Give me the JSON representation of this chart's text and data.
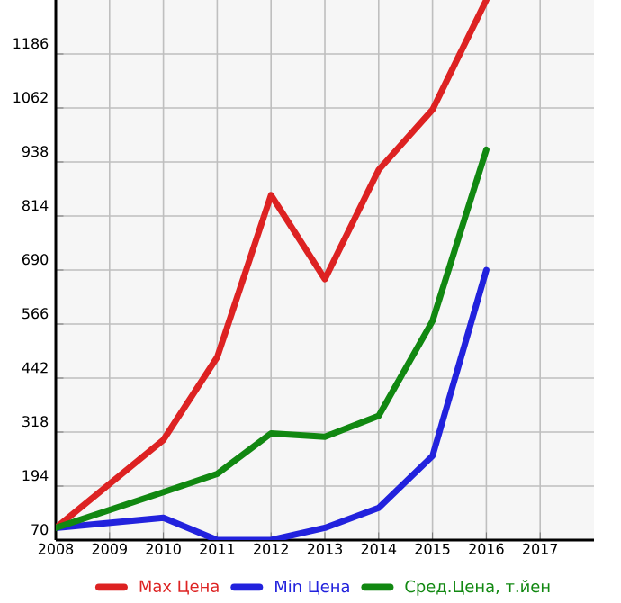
{
  "chart_data": {
    "type": "line",
    "xlim": [
      2008,
      2018
    ],
    "xticks": [
      2008,
      2009,
      2010,
      2011,
      2012,
      2013,
      2014,
      2015,
      2016,
      2017
    ],
    "ylim": [
      70,
      1310
    ],
    "yticks": [
      70,
      194,
      318,
      442,
      566,
      690,
      814,
      938,
      1062,
      1186
    ],
    "grid": true,
    "legend": "bottom",
    "marker": "none",
    "line_style": "solid",
    "series": [
      {
        "name": "Max Цена",
        "color": "#dd2222",
        "x": [
          2008,
          2010,
          2011,
          2012,
          2013,
          2014,
          2015,
          2016
        ],
        "values": [
          98,
          300,
          490,
          862,
          669,
          920,
          1058,
          1310
        ]
      },
      {
        "name": "Min Цена",
        "color": "#2222dd",
        "x": [
          2008,
          2010,
          2011,
          2012,
          2013,
          2014,
          2015,
          2016
        ],
        "values": [
          98,
          121,
          70,
          70,
          98,
          144,
          263,
          690
        ]
      },
      {
        "name": "Сред.Цена, т.йен",
        "color": "#118811",
        "x": [
          2008,
          2010,
          2011,
          2012,
          2013,
          2014,
          2015,
          2016
        ],
        "values": [
          98,
          180,
          222,
          315,
          307,
          355,
          573,
          966
        ]
      }
    ]
  }
}
